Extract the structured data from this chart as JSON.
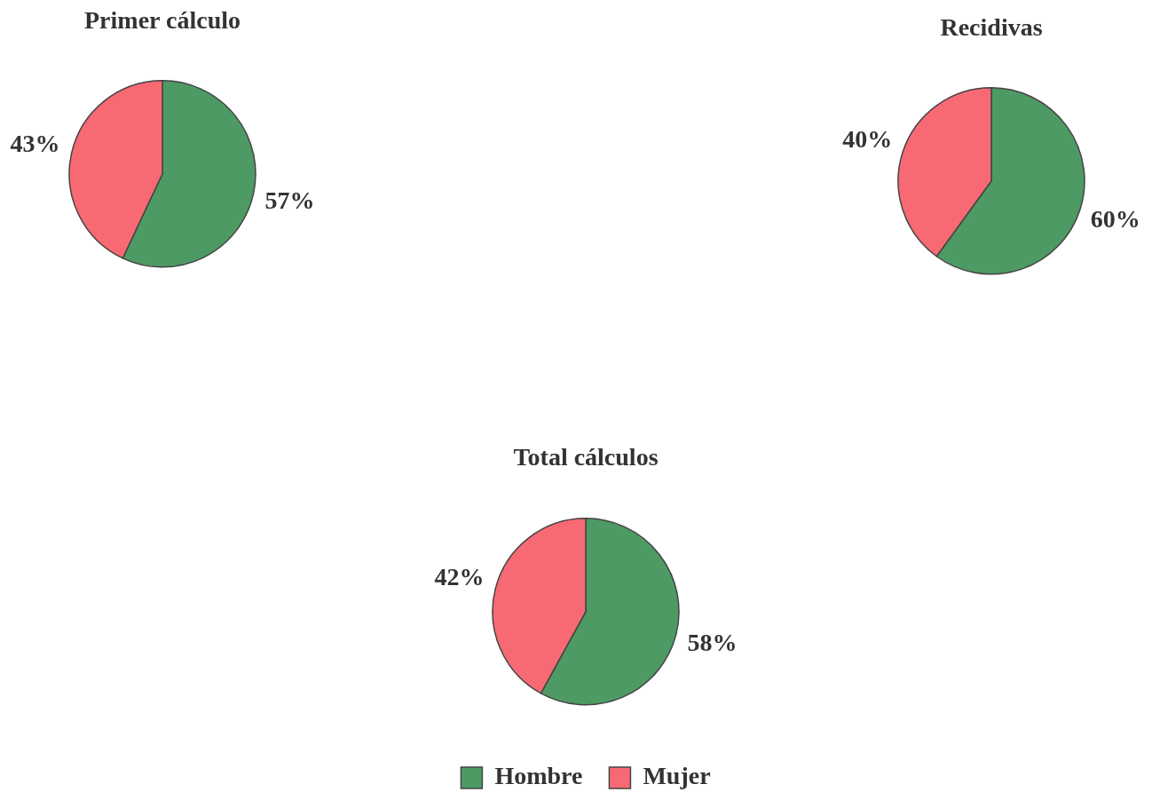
{
  "chart_data": [
    {
      "type": "pie",
      "title": "Primer cálculo",
      "categories": [
        null,
        null
      ],
      "values": [
        57,
        43
      ],
      "colors": [
        "#4e9a64",
        "#f76a74"
      ],
      "value_labels": [
        "57%",
        "43%"
      ],
      "legend": false
    },
    {
      "type": "pie",
      "title": "Recidivas",
      "categories": [
        null,
        null
      ],
      "values": [
        60,
        40
      ],
      "colors": [
        "#4e9a64",
        "#f76a74"
      ],
      "value_labels": [
        "60%",
        "40%"
      ],
      "legend": false
    },
    {
      "type": "pie",
      "title": "Total cálculos",
      "categories": [
        "Hombre",
        "Mujer"
      ],
      "values": [
        58,
        42
      ],
      "colors": [
        "#4e9a64",
        "#f76a74"
      ],
      "value_labels": [
        "58%",
        "42%"
      ],
      "legend": "bottom"
    }
  ]
}
